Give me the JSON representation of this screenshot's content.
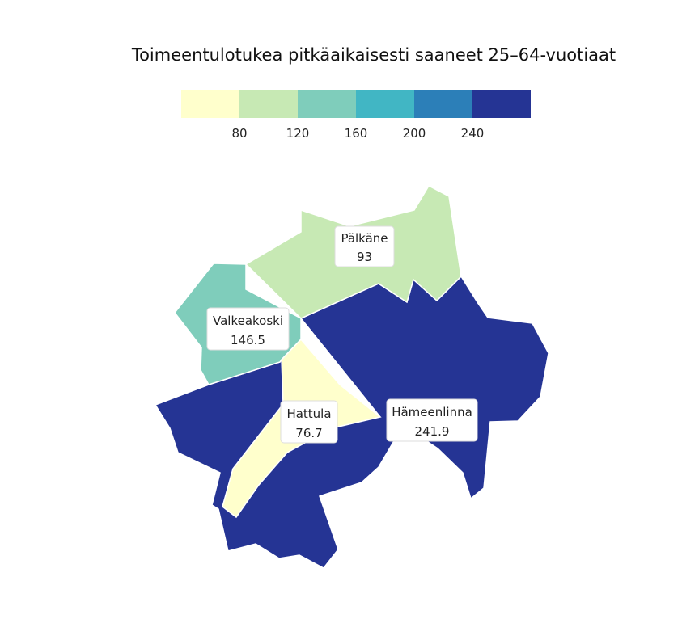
{
  "title": "Toimeentulotukea pitkäaikaisesti saaneet 25–64-vuotiaat",
  "legend": {
    "bins": [
      {
        "color": "#ffffcc"
      },
      {
        "color": "#c7e9b4"
      },
      {
        "color": "#7fcdbb"
      },
      {
        "color": "#41b6c4"
      },
      {
        "color": "#2c7fb8"
      },
      {
        "color": "#253494"
      }
    ],
    "ticks": [
      "80",
      "120",
      "160",
      "200",
      "240"
    ]
  },
  "regions": [
    {
      "name": "Pälkäne",
      "value": "93",
      "color": "#c7e9b4"
    },
    {
      "name": "Valkeakoski",
      "value": "146.5",
      "color": "#7fcdbb"
    },
    {
      "name": "Hattula",
      "value": "76.7",
      "color": "#ffffcc"
    },
    {
      "name": "Hämeenlinna",
      "value": "241.9",
      "color": "#253494"
    }
  ]
}
